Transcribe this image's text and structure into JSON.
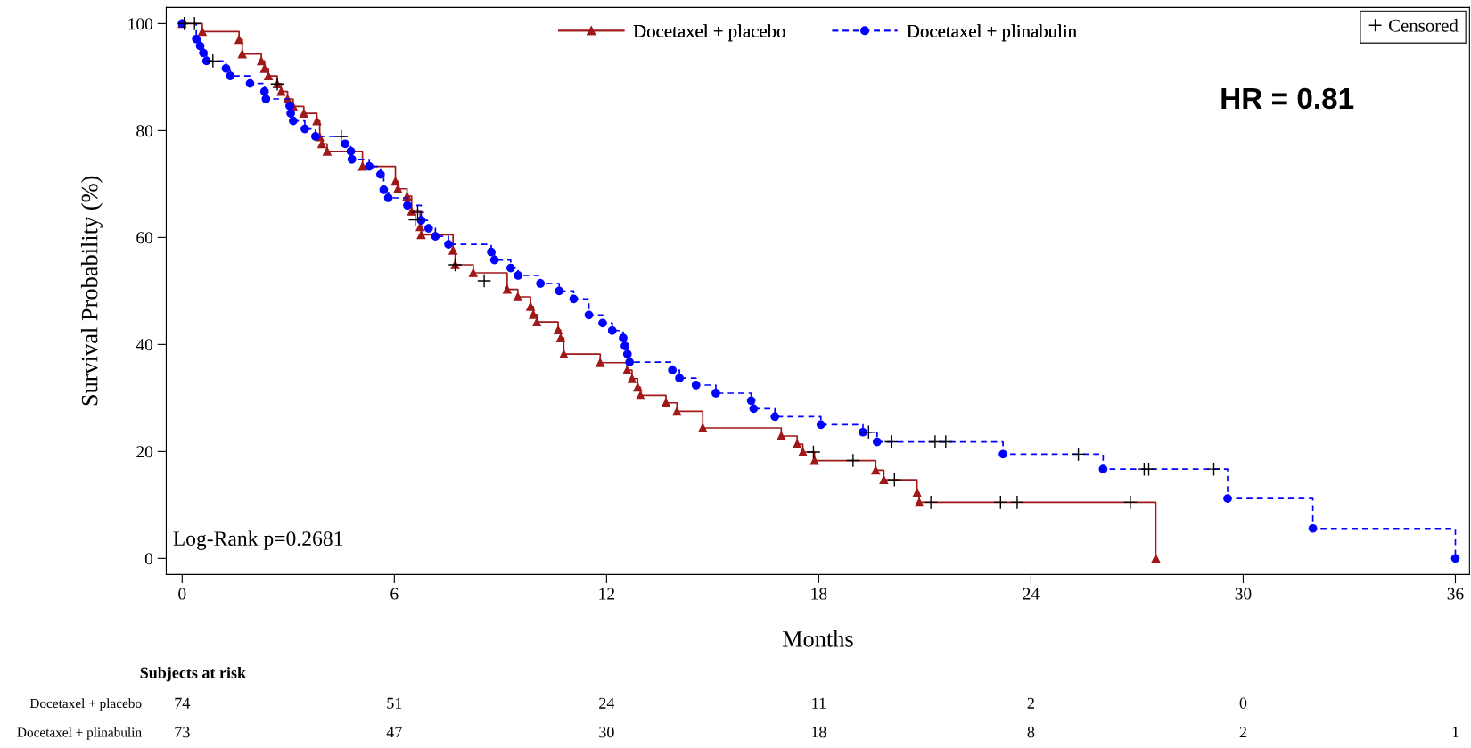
{
  "chart_data": [
    {
      "type": "step",
      "ylabel": "Survival Probability (%)",
      "xlabel": "Months",
      "xlim": [
        -0.45,
        36.4
      ],
      "ylim": [
        -3,
        103
      ],
      "xticks": [
        0,
        6,
        12,
        18,
        24,
        30,
        36
      ],
      "yticks": [
        0,
        20,
        40,
        60,
        80,
        100
      ],
      "grid": false,
      "legend": "top",
      "annotations": [
        "HR = 0.81",
        "Log-Rank p=0.2681"
      ],
      "series": [
        {
          "name": "Docetaxel + placebo",
          "color": "#a01818",
          "marker": "triangle",
          "line_style": "solid",
          "x": [
            0,
            0.57,
            1.61,
            1.7,
            2.24,
            2.33,
            2.44,
            2.69,
            2.8,
            2.98,
            3.14,
            3.44,
            3.81,
            3.89,
            3.95,
            4.1,
            5.1,
            6.03,
            6.1,
            6.36,
            6.49,
            6.73,
            6.76,
            7.66,
            7.72,
            8.23,
            9.19,
            9.49,
            9.85,
            9.93,
            10.03,
            10.63,
            10.7,
            10.79,
            11.82,
            12.58,
            12.72,
            12.88,
            12.96,
            13.68,
            13.99,
            14.72,
            16.94,
            17.39,
            17.55,
            17.88,
            19.61,
            19.84,
            20.78,
            20.84,
            27.53
          ],
          "values": [
            100,
            98.5,
            97.0,
            94.3,
            93.0,
            91.6,
            90.2,
            88.7,
            87.3,
            85.9,
            84.5,
            83.2,
            81.8,
            78.8,
            77.5,
            76.1,
            73.3,
            70.5,
            69.1,
            67.7,
            64.9,
            62.0,
            60.5,
            57.6,
            54.9,
            53.4,
            50.3,
            48.9,
            47.1,
            45.6,
            44.2,
            42.7,
            41.2,
            38.2,
            36.6,
            35.2,
            33.6,
            32.0,
            30.5,
            29.1,
            27.5,
            24.4,
            22.9,
            21.4,
            19.9,
            18.3,
            16.5,
            14.7,
            12.3,
            10.5,
            0
          ]
        },
        {
          "name": "Docetaxel + plinabulin",
          "color": "#0000ff",
          "marker": "circle",
          "line_style": "dashed",
          "x": [
            0,
            0.4,
            0.51,
            0.6,
            0.69,
            1.24,
            1.36,
            1.92,
            2.33,
            2.37,
            3.04,
            3.07,
            3.14,
            3.47,
            3.77,
            4.61,
            4.77,
            4.8,
            5.29,
            5.61,
            5.7,
            5.83,
            6.37,
            6.76,
            6.97,
            7.16,
            7.53,
            8.74,
            8.83,
            9.29,
            9.5,
            10.13,
            10.66,
            11.07,
            11.5,
            11.89,
            12.16,
            12.47,
            12.52,
            12.59,
            12.65,
            13.86,
            14.06,
            14.53,
            15.09,
            16.09,
            16.16,
            16.76,
            18.06,
            19.25,
            19.65,
            23.21,
            26.04,
            29.56,
            31.97,
            36.0
          ],
          "values": [
            100,
            97.1,
            95.8,
            94.5,
            93.0,
            91.6,
            90.2,
            88.8,
            87.3,
            85.9,
            84.6,
            83.2,
            81.8,
            80.3,
            78.9,
            77.5,
            76.1,
            74.6,
            73.3,
            71.8,
            68.9,
            67.4,
            66.0,
            63.2,
            61.7,
            60.2,
            58.7,
            57.3,
            55.8,
            54.3,
            52.9,
            51.4,
            50.0,
            48.5,
            45.5,
            44.0,
            42.6,
            41.2,
            39.7,
            38.2,
            36.7,
            35.2,
            33.7,
            32.4,
            30.9,
            29.5,
            28.0,
            26.5,
            25.0,
            23.6,
            21.8,
            19.5,
            16.7,
            11.2,
            5.6,
            0
          ]
        },
        {
          "name": "Censored",
          "type": "scatter",
          "color": "#000000",
          "marker": "cross",
          "x": [
            0.06,
            2.69,
            6.59,
            7.72,
            8.54,
            17.85,
            18.97,
            20.14,
            21.17,
            23.14,
            23.61,
            26.81,
            0.35,
            0.87,
            4.5,
            6.66,
            19.41,
            20.05,
            21.29,
            21.59,
            25.34,
            27.2,
            27.33,
            29.17
          ],
          "values": [
            100,
            88.7,
            63.3,
            54.9,
            51.9,
            19.9,
            18.3,
            14.7,
            10.5,
            10.5,
            10.5,
            10.5,
            100,
            93.0,
            78.9,
            64.7,
            23.6,
            21.8,
            21.8,
            21.8,
            19.5,
            16.7,
            16.7,
            16.7
          ]
        }
      ]
    },
    {
      "type": "heatmap",
      "title": "Subjects at risk",
      "data_labels": true,
      "categories": [
        null,
        null,
        null,
        null,
        null,
        null,
        null
      ],
      "y_categories": [
        "Docetaxel + placebo",
        "Docetaxel + plinabulin"
      ],
      "cells": [
        [
          74,
          51,
          24,
          11,
          2,
          0,
          null
        ],
        [
          73,
          47,
          30,
          18,
          8,
          2,
          1
        ]
      ]
    }
  ]
}
